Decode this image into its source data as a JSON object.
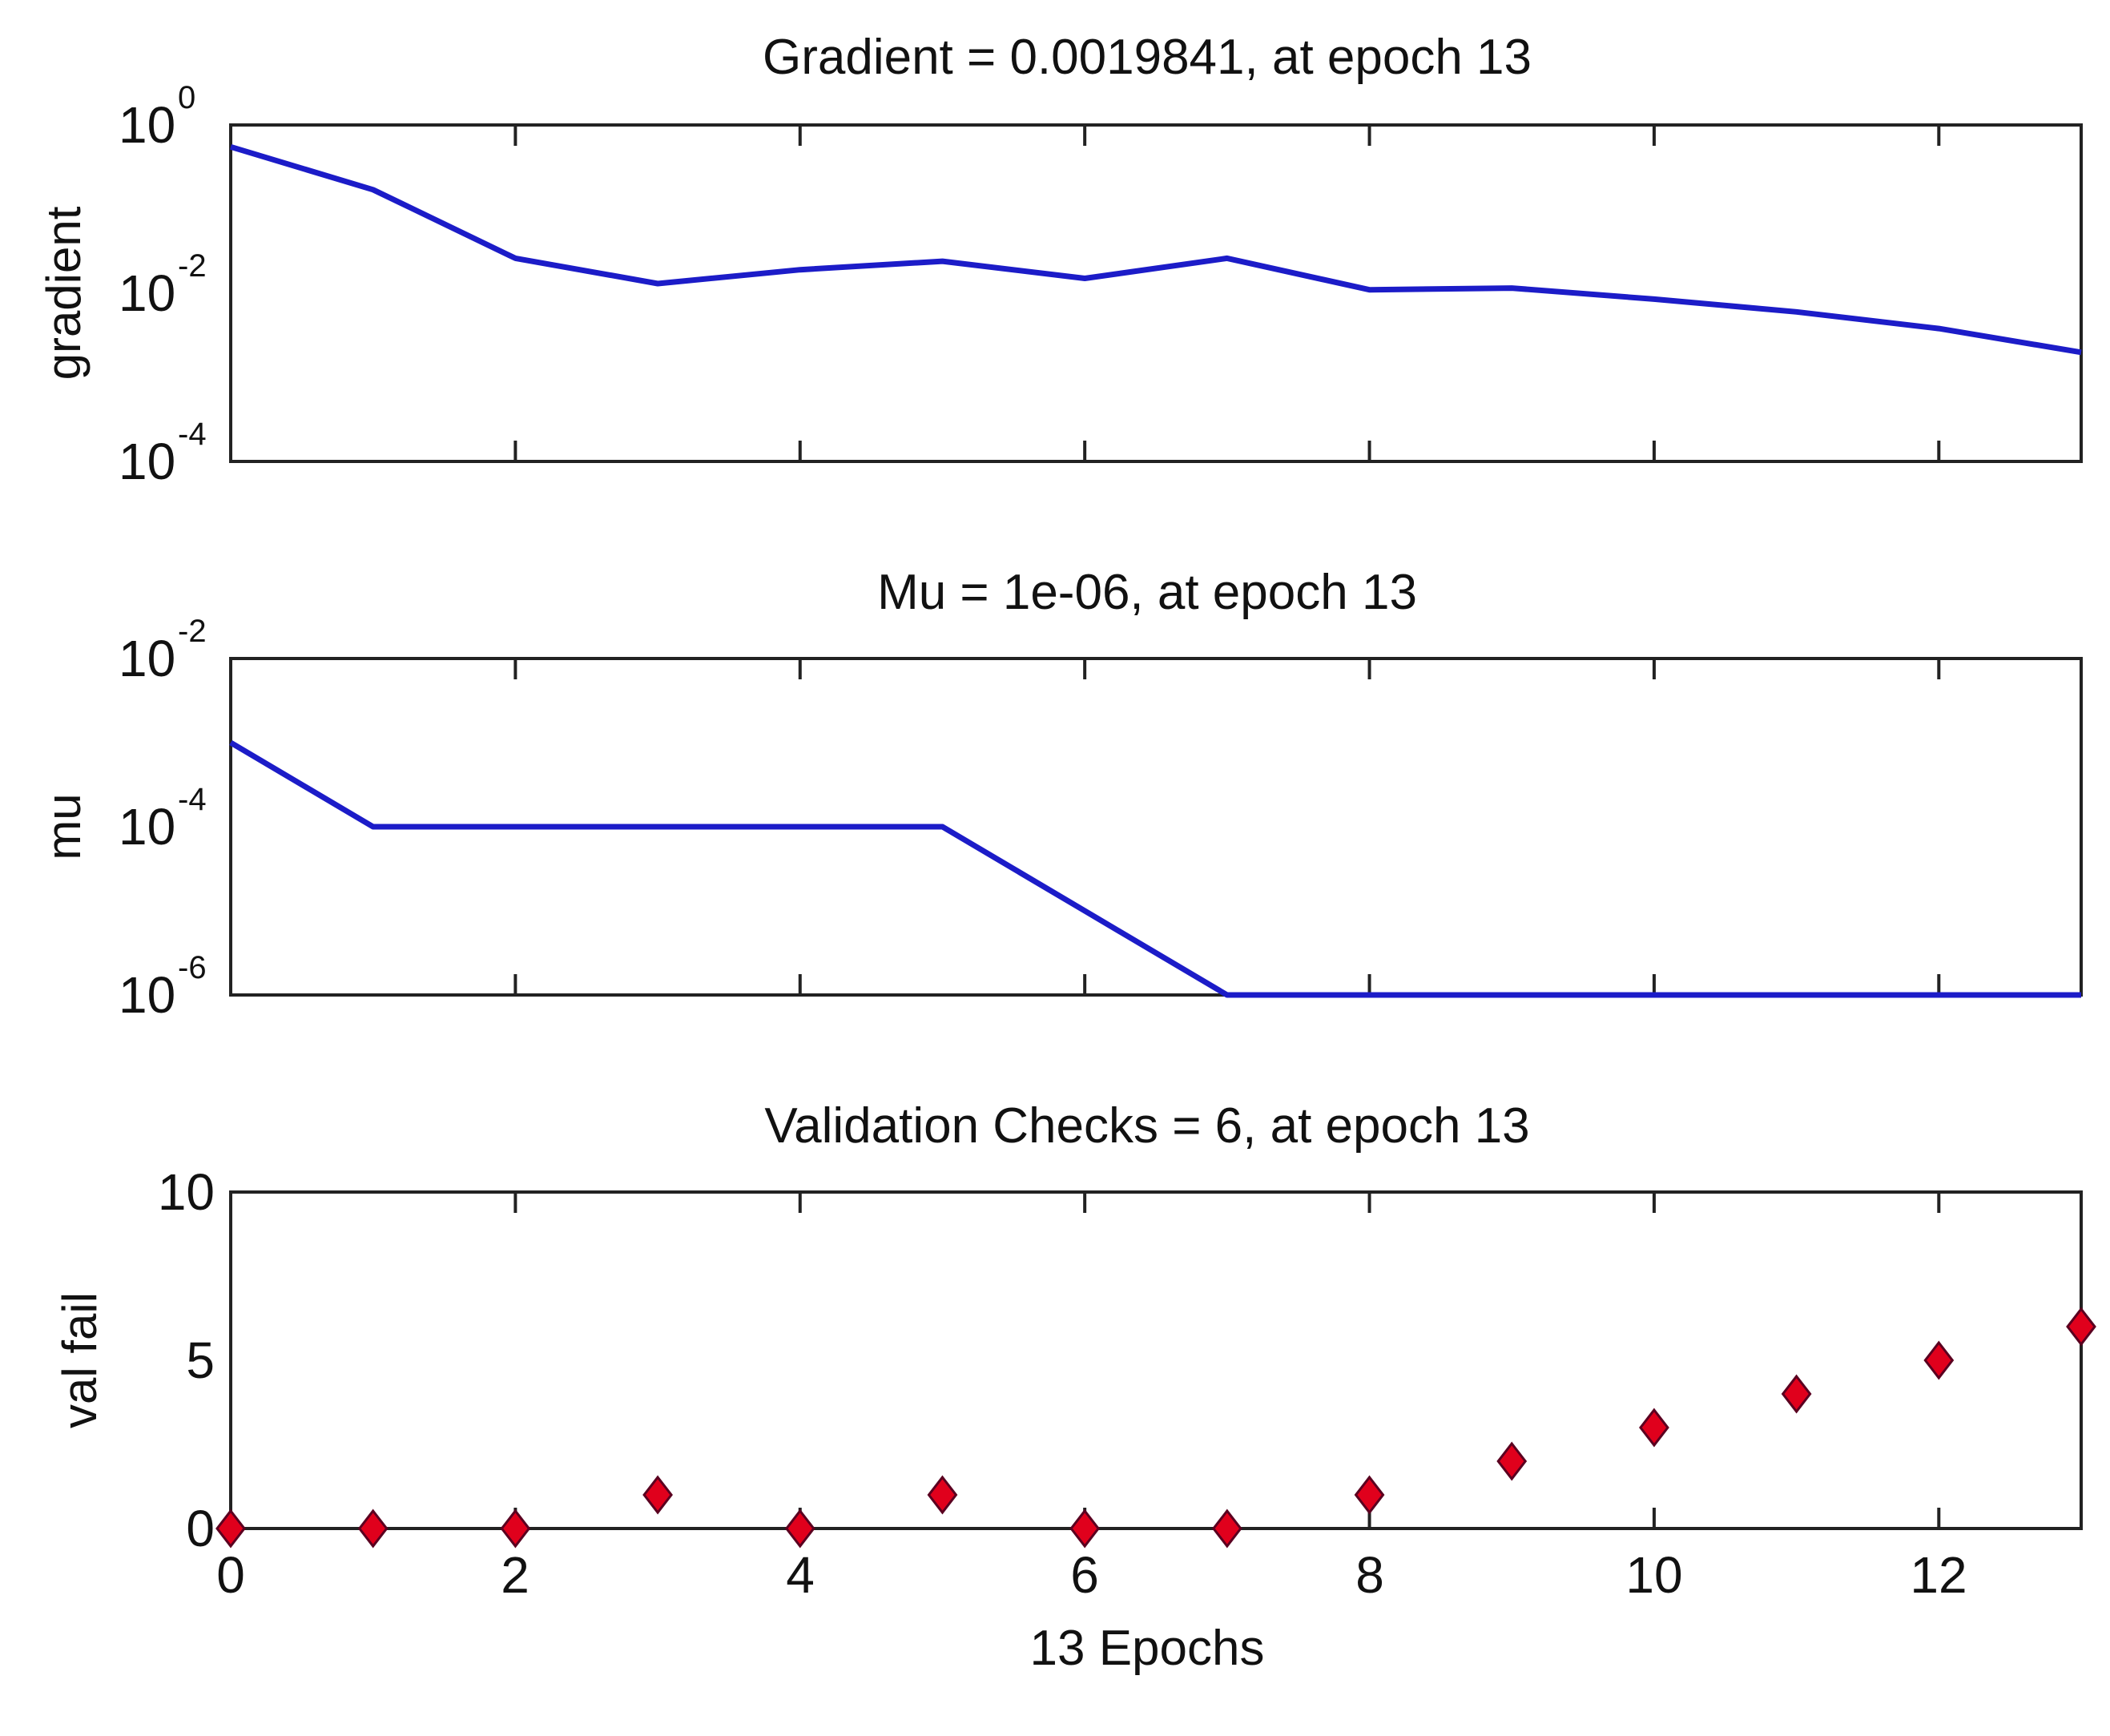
{
  "chart_data": [
    {
      "type": "line",
      "scale": "log",
      "title": "Gradient = 0.0019841, at epoch 13",
      "ylabel": "gradient",
      "xlabel": "",
      "xlim": [
        0,
        13
      ],
      "ylim_exp": [
        -4,
        0
      ],
      "ytick_exps": [
        "0",
        "-2",
        "-4"
      ],
      "x": [
        0,
        1,
        2,
        3,
        4,
        5,
        6,
        7,
        8,
        9,
        10,
        11,
        12,
        13
      ],
      "values": [
        0.55,
        0.17,
        0.026,
        0.013,
        0.019,
        0.024,
        0.015,
        0.026,
        0.011,
        0.0115,
        0.0085,
        0.006,
        0.0038,
        0.0019841
      ],
      "color": "#1c1cc8"
    },
    {
      "type": "line",
      "scale": "log",
      "title": "Mu = 1e-06, at epoch 13",
      "ylabel": "mu",
      "xlabel": "",
      "xlim": [
        0,
        13
      ],
      "ylim_exp": [
        -6,
        -2
      ],
      "ytick_exps": [
        "-2",
        "-4",
        "-6"
      ],
      "x": [
        0,
        1,
        2,
        3,
        4,
        5,
        6,
        7,
        8,
        9,
        10,
        11,
        12,
        13
      ],
      "values": [
        0.001,
        0.0001,
        0.0001,
        0.0001,
        0.0001,
        0.0001,
        1e-05,
        1e-06,
        1e-06,
        1e-06,
        1e-06,
        1e-06,
        1e-06,
        1e-06
      ],
      "color": "#1c1cc8"
    },
    {
      "type": "scatter",
      "scale": "linear",
      "title": "Validation Checks = 6, at epoch 13",
      "ylabel": "val fail",
      "xlabel": "13 Epochs",
      "xlim": [
        0,
        13
      ],
      "ylim": [
        0,
        10
      ],
      "yticks": [
        "10",
        "5",
        "0"
      ],
      "xticks": [
        "0",
        "2",
        "4",
        "6",
        "8",
        "10",
        "12"
      ],
      "x": [
        0,
        1,
        2,
        3,
        4,
        5,
        6,
        7,
        8,
        9,
        10,
        11,
        12,
        13
      ],
      "values": [
        0,
        0,
        0,
        1,
        0,
        1,
        0,
        0,
        1,
        2,
        3,
        4,
        5,
        6
      ],
      "marker_color": "#e0001c",
      "marker_edge": "#5a0020"
    }
  ]
}
